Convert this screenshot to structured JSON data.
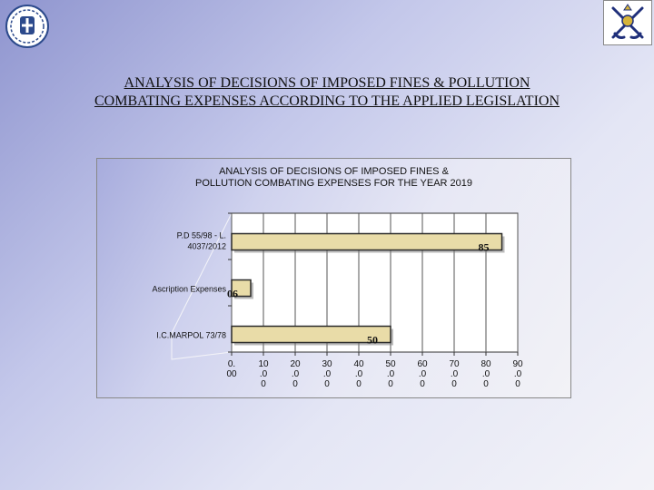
{
  "slide": {
    "title_line1": "ANALYSIS OF DECISIONS OF IMPOSED FINES & POLLUTION",
    "title_line2": "COMBATING EXPENSES ACCORDING TO THE APPLIED LEGISLATION"
  },
  "logos": {
    "left": "greek-coat-of-arms-icon",
    "right": "coast-guard-anchor-emblem-icon"
  },
  "chart_data": {
    "type": "bar",
    "orientation": "horizontal",
    "title_line1": "ANALYSIS OF DECISIONS OF IMPOSED FINES &",
    "title_line2": "POLLUTION COMBATING EXPENSES FOR THE YEAR 2019",
    "categories": [
      {
        "line1": "P.D 55/98 - L.",
        "line2": "4037/2012",
        "value": 85,
        "label": "85"
      },
      {
        "line1": "Ascription Expenses",
        "line2": "",
        "value": 6,
        "label": "06"
      },
      {
        "line1": "I.C.MARPOL 73/78",
        "line2": "",
        "value": 50,
        "label": "50"
      }
    ],
    "ticks": [
      {
        "value": 0,
        "l1": "0.",
        "l2": "00",
        "l3": ""
      },
      {
        "value": 10,
        "l1": "10",
        "l2": ".0",
        "l3": "0"
      },
      {
        "value": 20,
        "l1": "20",
        "l2": ".0",
        "l3": "0"
      },
      {
        "value": 30,
        "l1": "30",
        "l2": ".0",
        "l3": "0"
      },
      {
        "value": 40,
        "l1": "40",
        "l2": ".0",
        "l3": "0"
      },
      {
        "value": 50,
        "l1": "50",
        "l2": ".0",
        "l3": "0"
      },
      {
        "value": 60,
        "l1": "60",
        "l2": ".0",
        "l3": "0"
      },
      {
        "value": 70,
        "l1": "70",
        "l2": ".0",
        "l3": "0"
      },
      {
        "value": 80,
        "l1": "80",
        "l2": ".0",
        "l3": "0"
      },
      {
        "value": 90,
        "l1": "90",
        "l2": ".0",
        "l3": "0"
      }
    ],
    "xlim": [
      0,
      90
    ],
    "grid": true,
    "colors": {
      "bar_fill": "#e9dca8",
      "bar_edge": "#2a2a2a",
      "grid": "#555555",
      "plot_bg": "#ffffff"
    }
  }
}
